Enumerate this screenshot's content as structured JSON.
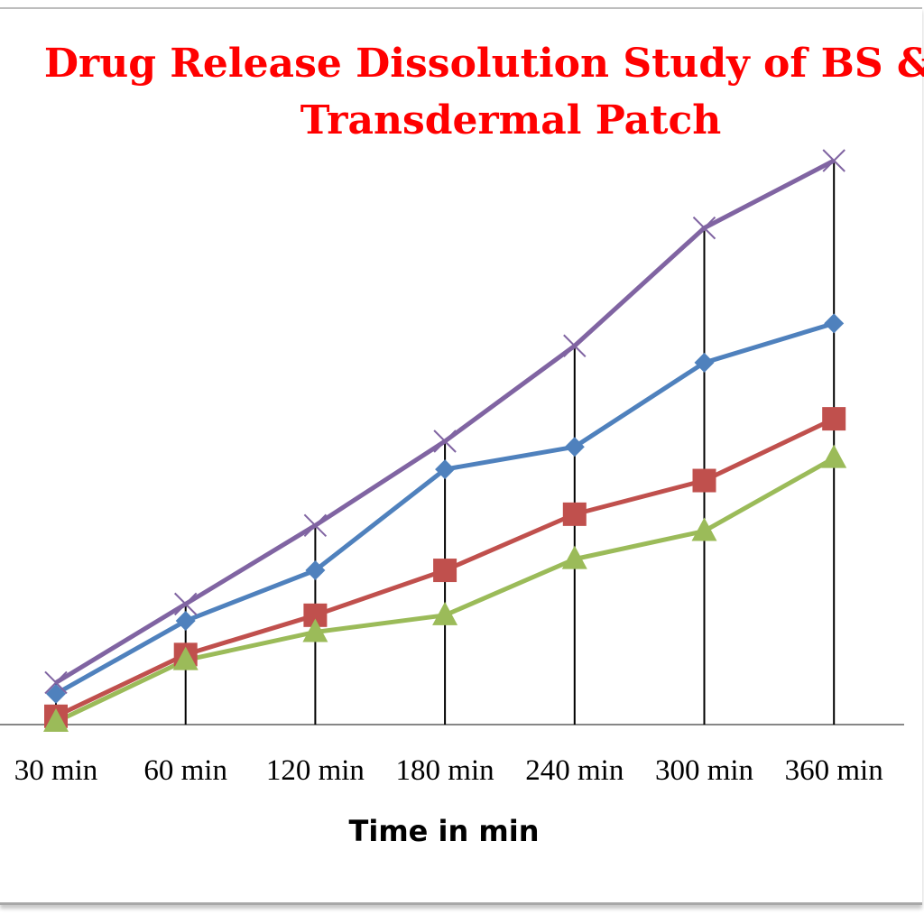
{
  "chart_data": {
    "type": "line",
    "title_lines": [
      "Drug Release Dissolution Study of BS & A",
      "Transdermal Patch"
    ],
    "xlabel": "Time in min",
    "ylabel": "",
    "categories": [
      "30 min",
      "60 min",
      "120 min",
      "180 min",
      "240 min",
      "300 min",
      "360 min"
    ],
    "ylim": [
      0,
      100
    ],
    "grid": false,
    "drop_lines": true,
    "series": [
      {
        "color": "#4f81bd",
        "marker": "diamond",
        "values": [
          5,
          18,
          27,
          45,
          49,
          64,
          71
        ]
      },
      {
        "color": "#c0504d",
        "marker": "square",
        "values": [
          1,
          12,
          19,
          27,
          37,
          43,
          54
        ]
      },
      {
        "color": "#9bbb59",
        "marker": "triangle",
        "values": [
          0,
          11,
          16,
          19,
          29,
          34,
          47
        ]
      },
      {
        "color": "#8064a2",
        "marker": "x",
        "values": [
          7,
          21,
          35,
          50,
          67,
          88,
          100
        ]
      }
    ]
  }
}
